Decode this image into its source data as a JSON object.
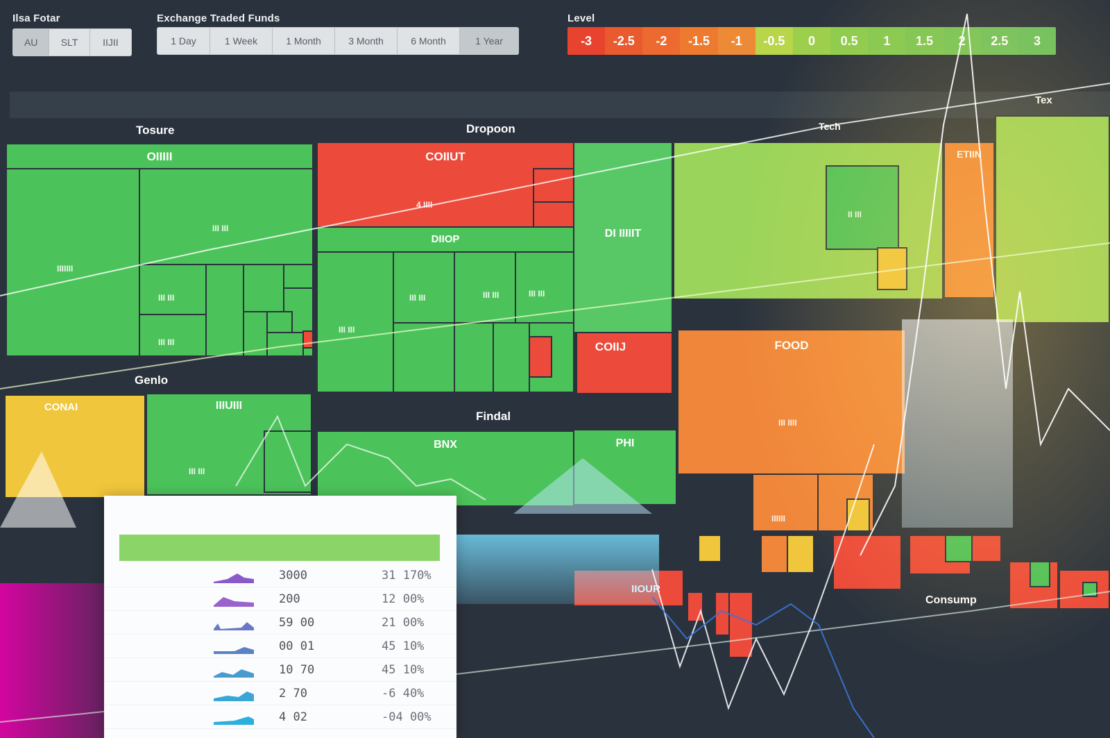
{
  "toolbar": {
    "group1_label": "Ilsa Fotar",
    "group1_buttons": [
      "AU",
      "SLT",
      "IIJII"
    ],
    "group2_label": "Exchange Traded Funds",
    "group2_buttons": [
      "1 Day",
      "1 Week",
      "1 Month",
      "3 Month",
      "6 Month",
      "1 Year"
    ],
    "legend_label": "Level",
    "legend_values": [
      "-3",
      "-2.5",
      "-2",
      "-1.5",
      "-1",
      "-0.5",
      "0",
      "0.5",
      "1",
      "1.5",
      "2",
      "2.5",
      "3"
    ],
    "legend_colors": [
      "#e8432f",
      "#ea5a2f",
      "#ec6a30",
      "#ee7a30",
      "#ed8a36",
      "#b9d54a",
      "#9ccf4c",
      "#8ccc4e",
      "#82c952",
      "#7ac656",
      "#74c45a",
      "#6ec25e",
      "#6ac060"
    ]
  },
  "sectors": {
    "s1": "Tosure",
    "s2": "Dropoon",
    "s3": "Tech",
    "s4": "Genlo",
    "s5": "Findal",
    "s6": "Consump",
    "corner": "Tex"
  },
  "tiles": {
    "t1": "OIIIII",
    "t1a": "IIIIIII",
    "t1b": "III III",
    "t1c": "III III",
    "t1d": "III III",
    "t2": "COIIUT",
    "t2a": "4 IIII",
    "t3": "DIIOP",
    "t3a": "III III",
    "t3b": "III III",
    "t3c": "III III",
    "t3d": "III III",
    "t4": "DI IIIIIT",
    "t5": "COIIJ",
    "t6": "ETIIN",
    "t6a": "II III",
    "t7": "FOOD",
    "t7a": "III IIII",
    "t8": "CONAI",
    "t9": "IIIUIII",
    "t9a": "III III",
    "t10": "BNX",
    "t11": "PHI",
    "t12": "IIOUR",
    "t13": "IIIIII"
  },
  "panel": {
    "rows": [
      {
        "v1": "3000",
        "v2": "31 170%"
      },
      {
        "v1": "200",
        "v2": "12 00%"
      },
      {
        "v1": "59 00",
        "v2": "21 00%"
      },
      {
        "v1": "00 01",
        "v2": "45 10%"
      },
      {
        "v1": "10 70",
        "v2": "45 10%"
      },
      {
        "v1": "2 70",
        "v2": "-6 40%"
      },
      {
        "v1": "4 02",
        "v2": "-04 00%"
      }
    ],
    "spark_colors": [
      "#8a5ac8",
      "#9a62cc",
      "#6a78c8",
      "#5a82c6",
      "#4a9ad0",
      "#3aa6d8",
      "#2ab0dc"
    ]
  }
}
